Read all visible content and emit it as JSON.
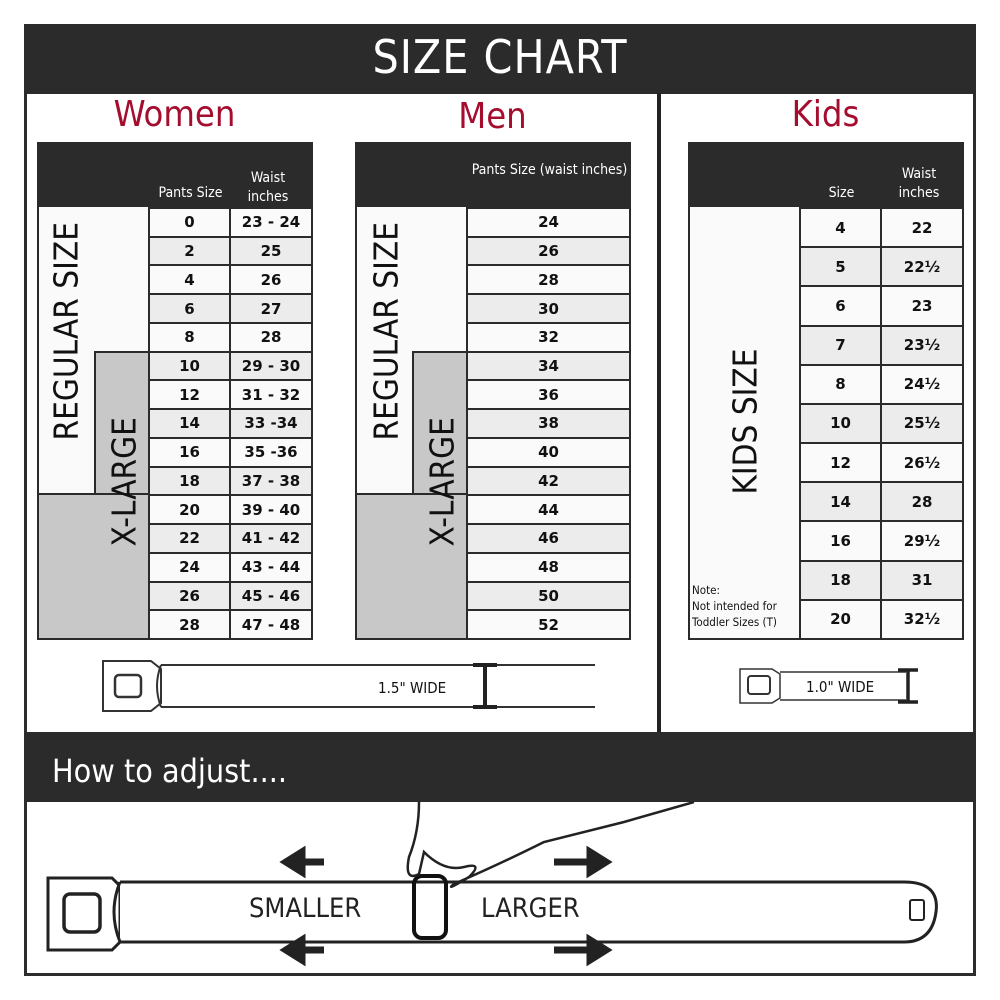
{
  "title": "SIZE CHART",
  "women": {
    "title": "Women",
    "headers": [
      "Pants Size",
      "Waist inches"
    ],
    "regular_label": "REGULAR SIZE",
    "xlarge_label": "X-LARGE",
    "rows": [
      [
        "0",
        "23 - 24"
      ],
      [
        "2",
        "25"
      ],
      [
        "4",
        "26"
      ],
      [
        "6",
        "27"
      ],
      [
        "8",
        "28"
      ],
      [
        "10",
        "29 - 30"
      ],
      [
        "12",
        "31 - 32"
      ],
      [
        "14",
        "33 -34"
      ],
      [
        "16",
        "35 -36"
      ],
      [
        "18",
        "37 - 38"
      ],
      [
        "20",
        "39 - 40"
      ],
      [
        "22",
        "41 - 42"
      ],
      [
        "24",
        "43 - 44"
      ],
      [
        "26",
        "45 - 46"
      ],
      [
        "28",
        "47 - 48"
      ]
    ],
    "belt_width": "1.5\" WIDE"
  },
  "men": {
    "title": "Men",
    "headers": [
      "Pants Size (waist inches)"
    ],
    "regular_label": "REGULAR SIZE",
    "xlarge_label": "X-LARGE",
    "rows": [
      "24",
      "26",
      "28",
      "30",
      "32",
      "34",
      "36",
      "38",
      "40",
      "42",
      "44",
      "46",
      "48",
      "50",
      "52"
    ]
  },
  "kids": {
    "title": "Kids",
    "headers": [
      "Size",
      "Waist inches"
    ],
    "size_label": "KIDS SIZE",
    "note_title": "Note:",
    "note": "Not intended for Toddler Sizes (T)",
    "rows": [
      [
        "4",
        "22"
      ],
      [
        "5",
        "22½"
      ],
      [
        "6",
        "23"
      ],
      [
        "7",
        "23½"
      ],
      [
        "8",
        "24½"
      ],
      [
        "10",
        "25½"
      ],
      [
        "12",
        "26½"
      ],
      [
        "14",
        "28"
      ],
      [
        "16",
        "29½"
      ],
      [
        "18",
        "31"
      ],
      [
        "20",
        "32½"
      ]
    ],
    "belt_width": "1.0\" WIDE"
  },
  "adjust": {
    "title": "How to adjust....",
    "smaller": "SMALLER",
    "larger": "LARGER"
  },
  "colors": {
    "accent": "#a50d2f",
    "dark": "#2b2b2b",
    "xlarge_gray": "#c8c8c8"
  }
}
